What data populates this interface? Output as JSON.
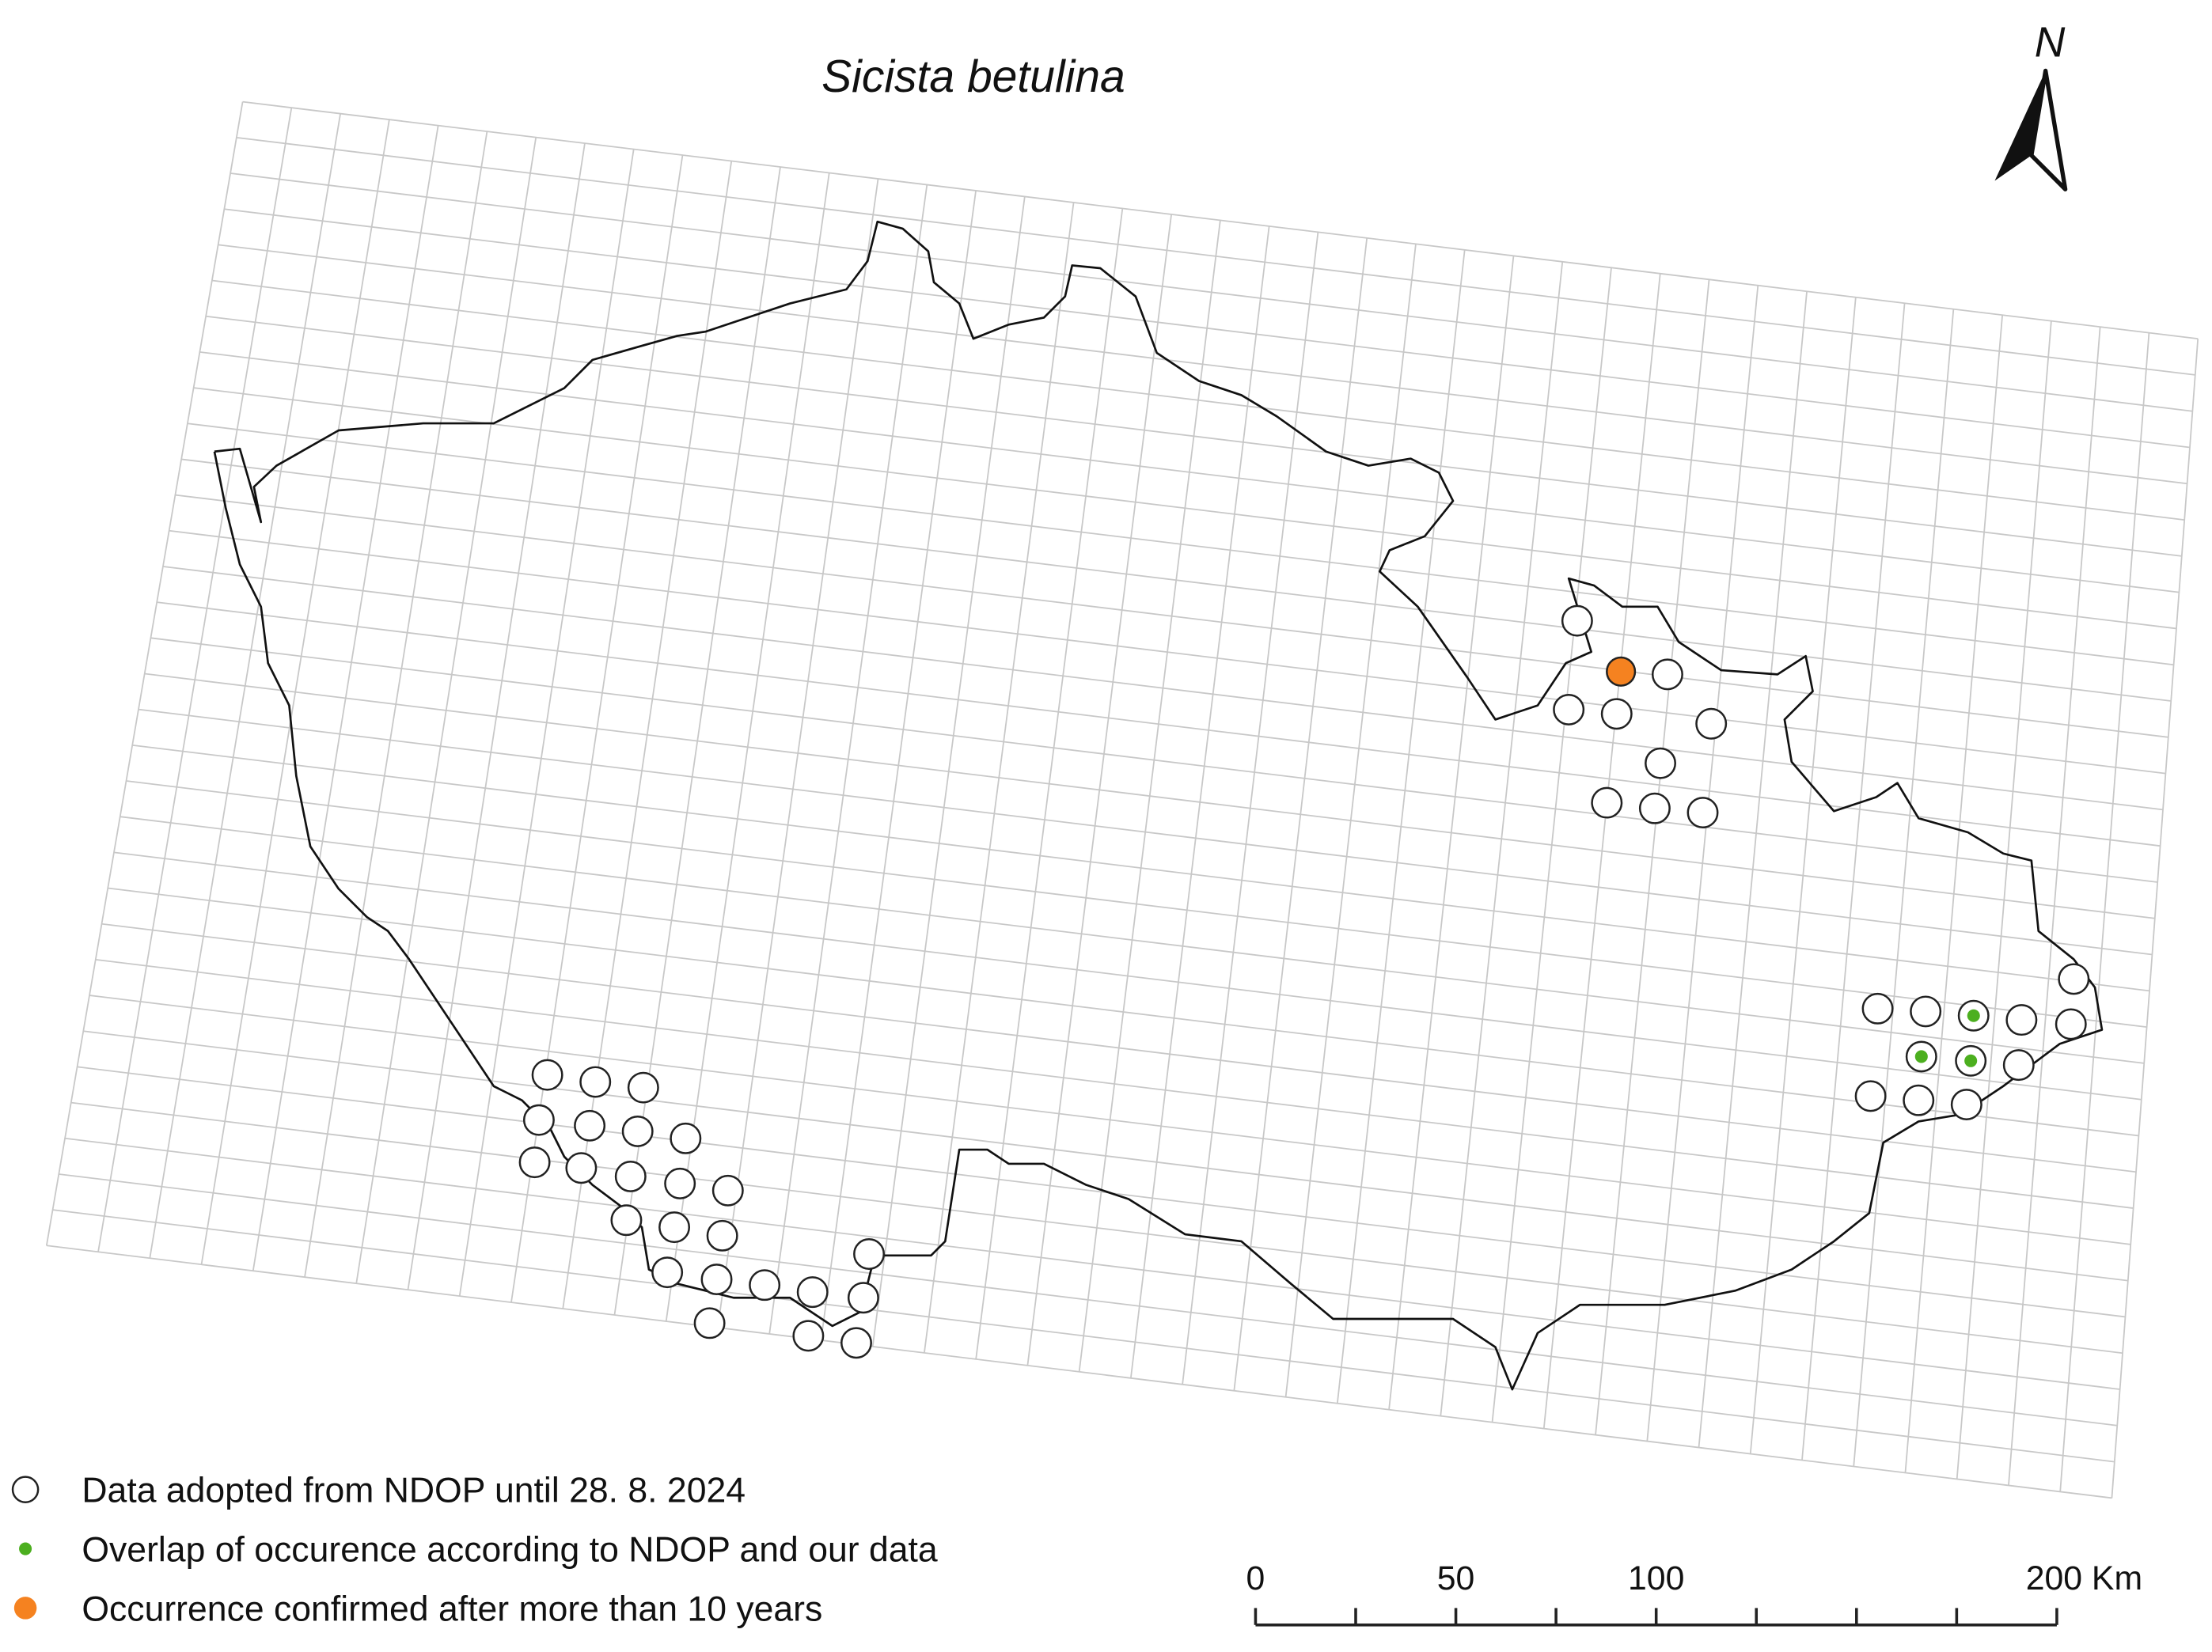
{
  "title": "Sicista betulina",
  "north_label": "N",
  "legend": [
    "Data adopted from NDOP until 28. 8. 2024",
    "Overlap of occurence according to NDOP and our data",
    "Occurrence confirmed after more than 10 years"
  ],
  "scale_bar": {
    "labels": [
      "0",
      "50",
      "100",
      "200 Km"
    ]
  }
}
